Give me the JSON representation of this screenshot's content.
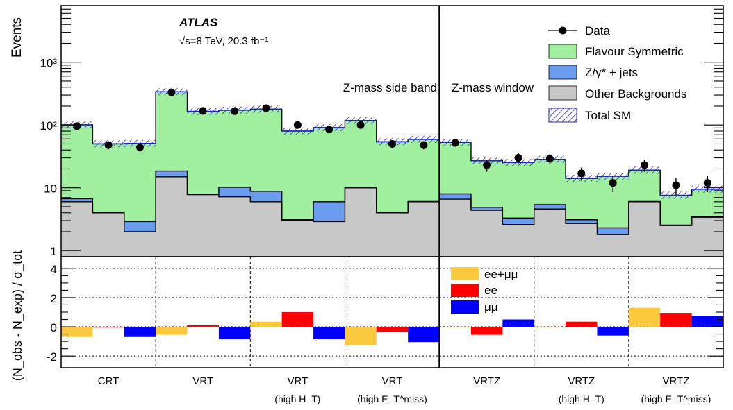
{
  "chart_data": {
    "type": "bar",
    "experiment": "ATLAS",
    "energy_lumi": "√s=8 TeV, 20.3 fb⁻¹",
    "upper": {
      "ylabel": "Events",
      "yscale": "log",
      "ylim": [
        0.8,
        8000
      ],
      "yticks": [
        {
          "value": 1,
          "label": "1"
        },
        {
          "value": 10,
          "label": "10"
        },
        {
          "value": 100,
          "label": "10²"
        },
        {
          "value": 1000,
          "label": "10³"
        }
      ],
      "bin_count": 21,
      "stack_series": [
        {
          "name": "Other Backgrounds",
          "color": "#c8c8c8",
          "values": [
            6.0,
            4.0,
            2.0,
            15.0,
            7.8,
            7.2,
            6.0,
            3.0,
            2.9,
            10.0,
            4.0,
            6.0,
            6.6,
            4.4,
            2.6,
            4.6,
            2.7,
            1.8,
            6.0,
            2.5,
            3.4
          ]
        },
        {
          "name": "Z/γ* + jets",
          "color": "#6b9cf0",
          "values": [
            0.7,
            0.05,
            0.9,
            3.5,
            0.1,
            3.0,
            2.8,
            0.1,
            3.1,
            0.05,
            0.05,
            0.05,
            1.4,
            0.5,
            0.7,
            0.8,
            0.4,
            0.5,
            0.05,
            0.05,
            0.05
          ]
        },
        {
          "name": "Flavour Symmetric",
          "color": "#a0f0a0",
          "values": [
            94,
            46,
            48,
            320,
            157,
            162,
            170,
            77,
            85,
            108,
            50,
            53,
            45,
            22,
            22,
            23,
            11,
            13,
            13,
            5.0,
            6.0
          ]
        }
      ],
      "total_sm": [
        100.7,
        50.1,
        50.9,
        338.5,
        164.9,
        172.2,
        178.8,
        80.1,
        91.0,
        118.1,
        54.1,
        59.1,
        53.0,
        26.9,
        25.3,
        28.4,
        14.1,
        15.3,
        19.1,
        7.6,
        9.5
      ],
      "data": [
        96,
        48,
        44,
        330,
        168,
        166,
        185,
        100,
        85,
        100,
        50,
        48,
        52,
        23,
        30,
        29,
        17,
        12,
        23,
        11,
        12
      ],
      "data_errors": [
        10,
        7,
        6.6,
        18,
        13,
        13,
        14,
        10,
        9,
        10,
        7,
        7,
        7,
        5,
        5.5,
        5.4,
        4,
        3.5,
        5,
        3.3,
        3.5
      ],
      "region_labels": [
        "Z-mass side band",
        "Z-mass window"
      ],
      "legend": {
        "position": "top-right",
        "entries": [
          {
            "label": "Data",
            "style": "marker"
          },
          {
            "label": "Flavour Symmetric",
            "style": "fill",
            "color": "#a0f0a0"
          },
          {
            "label": "Z/γ* + jets",
            "style": "fill",
            "color": "#6b9cf0"
          },
          {
            "label": "Other Backgrounds",
            "style": "fill",
            "color": "#c8c8c8"
          },
          {
            "label": "Total SM",
            "style": "hatch",
            "color": "#2222cc"
          }
        ]
      }
    },
    "lower": {
      "ylabel": "(N_obs - N_exp) / σ_tot",
      "ylim": [
        -2.8,
        4.8
      ],
      "yticks": [
        -2,
        0,
        2,
        4
      ],
      "gridlines": [
        -2,
        0,
        2,
        4
      ],
      "series": [
        {
          "name": "ee+μμ",
          "color": "#fbc93d",
          "values": [
            -0.7,
            -0.55,
            0.35,
            -1.25,
            -0.05,
            -0.05,
            1.3
          ]
        },
        {
          "name": "ee",
          "color": "#ff0000",
          "values": [
            -0.05,
            0.1,
            1.0,
            -0.35,
            -0.55,
            0.35,
            0.95
          ]
        },
        {
          "name": "μμ",
          "color": "#0000ff",
          "values": [
            -0.7,
            -0.85,
            -0.85,
            -1.05,
            0.5,
            -0.6,
            0.75
          ]
        }
      ]
    },
    "categories": [
      {
        "label": "CRT",
        "sub": ""
      },
      {
        "label": "VRT",
        "sub": ""
      },
      {
        "label": "VRT",
        "sub": "(high H_T)"
      },
      {
        "label": "VRT",
        "sub": "(high E_T^miss)"
      },
      {
        "label": "VRTZ",
        "sub": ""
      },
      {
        "label": "VRTZ",
        "sub": "(high H_T)"
      },
      {
        "label": "VRTZ",
        "sub": "(high E_T^miss)"
      }
    ]
  }
}
